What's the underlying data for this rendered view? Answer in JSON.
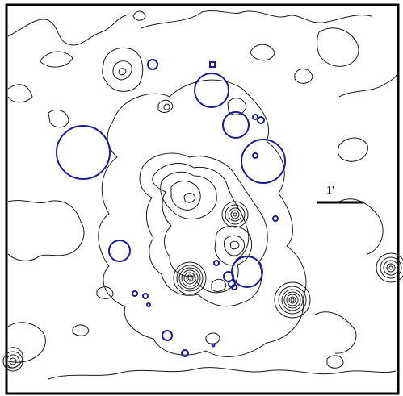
{
  "scale_bar": {
    "label": "1'"
  },
  "colors": {
    "contours": "#1a1a1a",
    "source_circles": "#1c1c8f",
    "frame": "#000000",
    "background": "#ffffff"
  }
}
